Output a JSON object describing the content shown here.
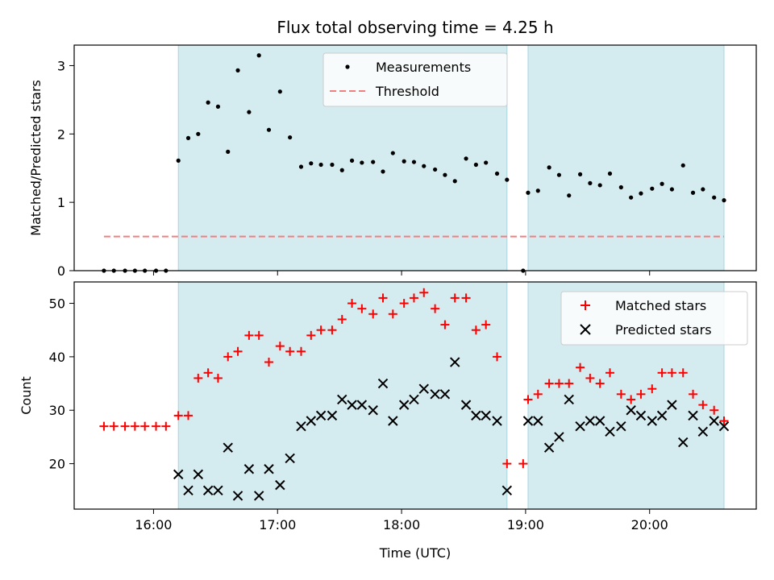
{
  "chart_data": [
    {
      "type": "scatter",
      "title": "Flux total observing time = 4.25 h",
      "xlabel": "",
      "ylabel": "Matched/Predicted stars",
      "xlim": [
        15.36,
        20.86
      ],
      "ylim": [
        0,
        3.3
      ],
      "x_ticks": [
        16,
        17,
        18,
        19,
        20
      ],
      "x_tick_labels": [
        "",
        "",
        "",
        "",
        ""
      ],
      "y_ticks": [
        0,
        1,
        2,
        3
      ],
      "y_tick_labels": [
        "0",
        "1",
        "2",
        "3"
      ],
      "shaded_intervals": [
        [
          16.2,
          18.85
        ],
        [
          19.02,
          20.6
        ]
      ],
      "shade_color": "#d4ebf0",
      "legend_position": "upper-center",
      "threshold": {
        "name": "Threshold",
        "value": 0.5,
        "x_range": [
          15.6,
          20.6
        ],
        "color": "#f08080"
      },
      "series": [
        {
          "name": "Measurements",
          "color": "#000000",
          "marker": "dot",
          "points": [
            [
              15.6,
              0
            ],
            [
              15.68,
              0
            ],
            [
              15.77,
              0
            ],
            [
              15.85,
              0
            ],
            [
              15.93,
              0
            ],
            [
              16.02,
              0
            ],
            [
              16.1,
              0
            ],
            [
              16.2,
              1.61
            ],
            [
              16.28,
              1.94
            ],
            [
              16.36,
              2.0
            ],
            [
              16.44,
              2.46
            ],
            [
              16.52,
              2.4
            ],
            [
              16.6,
              1.74
            ],
            [
              16.68,
              2.93
            ],
            [
              16.77,
              2.32
            ],
            [
              16.85,
              3.15
            ],
            [
              16.93,
              2.06
            ],
            [
              17.02,
              2.62
            ],
            [
              17.1,
              1.95
            ],
            [
              17.19,
              1.52
            ],
            [
              17.27,
              1.57
            ],
            [
              17.35,
              1.55
            ],
            [
              17.44,
              1.55
            ],
            [
              17.52,
              1.47
            ],
            [
              17.6,
              1.61
            ],
            [
              17.68,
              1.58
            ],
            [
              17.77,
              1.59
            ],
            [
              17.85,
              1.45
            ],
            [
              17.93,
              1.72
            ],
            [
              18.02,
              1.6
            ],
            [
              18.1,
              1.59
            ],
            [
              18.18,
              1.53
            ],
            [
              18.27,
              1.48
            ],
            [
              18.35,
              1.4
            ],
            [
              18.43,
              1.31
            ],
            [
              18.52,
              1.64
            ],
            [
              18.6,
              1.55
            ],
            [
              18.68,
              1.58
            ],
            [
              18.77,
              1.42
            ],
            [
              18.85,
              1.33
            ],
            [
              18.98,
              0
            ],
            [
              19.02,
              1.14
            ],
            [
              19.1,
              1.17
            ],
            [
              19.19,
              1.51
            ],
            [
              19.27,
              1.4
            ],
            [
              19.35,
              1.1
            ],
            [
              19.44,
              1.41
            ],
            [
              19.52,
              1.28
            ],
            [
              19.6,
              1.25
            ],
            [
              19.68,
              1.42
            ],
            [
              19.77,
              1.22
            ],
            [
              19.85,
              1.07
            ],
            [
              19.93,
              1.13
            ],
            [
              20.02,
              1.2
            ],
            [
              20.1,
              1.27
            ],
            [
              20.18,
              1.19
            ],
            [
              20.27,
              1.54
            ],
            [
              20.35,
              1.14
            ],
            [
              20.43,
              1.19
            ],
            [
              20.52,
              1.07
            ],
            [
              20.6,
              1.03
            ]
          ]
        }
      ]
    },
    {
      "type": "scatter",
      "title": "",
      "xlabel": "Time (UTC)",
      "ylabel": "Count",
      "xlim": [
        15.36,
        20.86
      ],
      "ylim": [
        11.5,
        54
      ],
      "x_ticks": [
        16,
        17,
        18,
        19,
        20
      ],
      "x_tick_labels": [
        "16:00",
        "17:00",
        "18:00",
        "19:00",
        "20:00"
      ],
      "y_ticks": [
        20,
        30,
        40,
        50
      ],
      "y_tick_labels": [
        "20",
        "30",
        "40",
        "50"
      ],
      "shaded_intervals": [
        [
          16.2,
          18.85
        ],
        [
          19.02,
          20.6
        ]
      ],
      "shade_color": "#d4ebf0",
      "legend_position": "upper-right",
      "series": [
        {
          "name": "Matched stars",
          "color": "#ff0000",
          "marker": "plus",
          "points": [
            [
              15.6,
              27
            ],
            [
              15.68,
              27
            ],
            [
              15.77,
              27
            ],
            [
              15.85,
              27
            ],
            [
              15.93,
              27
            ],
            [
              16.02,
              27
            ],
            [
              16.1,
              27
            ],
            [
              16.2,
              29
            ],
            [
              16.28,
              29
            ],
            [
              16.36,
              36
            ],
            [
              16.44,
              37
            ],
            [
              16.52,
              36
            ],
            [
              16.6,
              40
            ],
            [
              16.68,
              41
            ],
            [
              16.77,
              44
            ],
            [
              16.85,
              44
            ],
            [
              16.93,
              39
            ],
            [
              17.02,
              42
            ],
            [
              17.1,
              41
            ],
            [
              17.19,
              41
            ],
            [
              17.27,
              44
            ],
            [
              17.35,
              45
            ],
            [
              17.44,
              45
            ],
            [
              17.52,
              47
            ],
            [
              17.6,
              50
            ],
            [
              17.68,
              49
            ],
            [
              17.77,
              48
            ],
            [
              17.85,
              51
            ],
            [
              17.93,
              48
            ],
            [
              18.02,
              50
            ],
            [
              18.1,
              51
            ],
            [
              18.18,
              52
            ],
            [
              18.27,
              49
            ],
            [
              18.35,
              46
            ],
            [
              18.43,
              51
            ],
            [
              18.52,
              51
            ],
            [
              18.6,
              45
            ],
            [
              18.68,
              46
            ],
            [
              18.77,
              40
            ],
            [
              18.85,
              20
            ],
            [
              18.98,
              20
            ],
            [
              19.02,
              32
            ],
            [
              19.1,
              33
            ],
            [
              19.19,
              35
            ],
            [
              19.27,
              35
            ],
            [
              19.35,
              35
            ],
            [
              19.44,
              38
            ],
            [
              19.52,
              36
            ],
            [
              19.6,
              35
            ],
            [
              19.68,
              37
            ],
            [
              19.77,
              33
            ],
            [
              19.85,
              32
            ],
            [
              19.93,
              33
            ],
            [
              20.02,
              34
            ],
            [
              20.1,
              37
            ],
            [
              20.18,
              37
            ],
            [
              20.27,
              37
            ],
            [
              20.35,
              33
            ],
            [
              20.43,
              31
            ],
            [
              20.52,
              30
            ],
            [
              20.6,
              28
            ]
          ]
        },
        {
          "name": "Predicted stars",
          "color": "#000000",
          "marker": "x",
          "points": [
            [
              16.2,
              18
            ],
            [
              16.28,
              15
            ],
            [
              16.36,
              18
            ],
            [
              16.44,
              15
            ],
            [
              16.52,
              15
            ],
            [
              16.6,
              23
            ],
            [
              16.68,
              14
            ],
            [
              16.77,
              19
            ],
            [
              16.85,
              14
            ],
            [
              16.93,
              19
            ],
            [
              17.02,
              16
            ],
            [
              17.1,
              21
            ],
            [
              17.19,
              27
            ],
            [
              17.27,
              28
            ],
            [
              17.35,
              29
            ],
            [
              17.44,
              29
            ],
            [
              17.52,
              32
            ],
            [
              17.6,
              31
            ],
            [
              17.68,
              31
            ],
            [
              17.77,
              30
            ],
            [
              17.85,
              35
            ],
            [
              17.93,
              28
            ],
            [
              18.02,
              31
            ],
            [
              18.1,
              32
            ],
            [
              18.18,
              34
            ],
            [
              18.27,
              33
            ],
            [
              18.35,
              33
            ],
            [
              18.43,
              39
            ],
            [
              18.52,
              31
            ],
            [
              18.6,
              29
            ],
            [
              18.68,
              29
            ],
            [
              18.77,
              28
            ],
            [
              18.85,
              15
            ],
            [
              19.02,
              28
            ],
            [
              19.1,
              28
            ],
            [
              19.19,
              23
            ],
            [
              19.27,
              25
            ],
            [
              19.35,
              32
            ],
            [
              19.44,
              27
            ],
            [
              19.52,
              28
            ],
            [
              19.6,
              28
            ],
            [
              19.68,
              26
            ],
            [
              19.77,
              27
            ],
            [
              19.85,
              30
            ],
            [
              19.93,
              29
            ],
            [
              20.02,
              28
            ],
            [
              20.1,
              29
            ],
            [
              20.18,
              31
            ],
            [
              20.27,
              24
            ],
            [
              20.35,
              29
            ],
            [
              20.43,
              26
            ],
            [
              20.52,
              28
            ],
            [
              20.6,
              27
            ]
          ]
        }
      ]
    }
  ]
}
